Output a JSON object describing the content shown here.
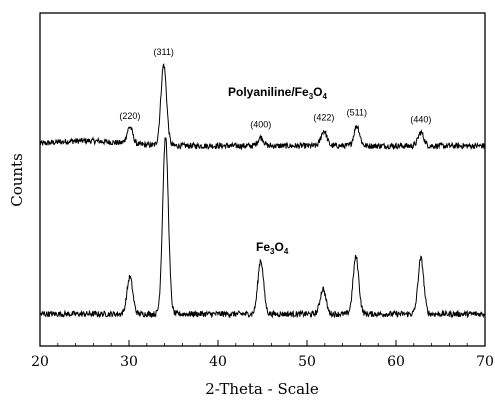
{
  "chart_data": {
    "type": "line",
    "xlabel": "2-Theta - Scale",
    "ylabel": "Counts",
    "xlim": [
      20,
      70
    ],
    "x_ticks": [
      "20",
      "30",
      "40",
      "50",
      "60",
      "70"
    ],
    "y_ticks_labeled": false,
    "grid": false,
    "series": [
      {
        "name": "Polyaniline/Fe3O4",
        "label_main": "Polyaniline/Fe",
        "label_sub1": "3",
        "label_mid": "O",
        "label_sub2": "4",
        "baseline": 1.0,
        "peaks": [
          {
            "hkl": "(220)",
            "x": 30.1,
            "height": 0.1
          },
          {
            "hkl": "(311)",
            "x": 33.9,
            "height": 0.48
          },
          {
            "hkl": "(400)",
            "x": 44.8,
            "height": 0.05
          },
          {
            "hkl": "(422)",
            "x": 51.9,
            "height": 0.09
          },
          {
            "hkl": "(511)",
            "x": 55.6,
            "height": 0.12
          },
          {
            "hkl": "(440)",
            "x": 62.8,
            "height": 0.08
          }
        ]
      },
      {
        "name": "Fe3O4",
        "label_main": "Fe",
        "label_sub1": "3",
        "label_mid": "O",
        "label_sub2": "4",
        "baseline": 0.0,
        "peaks": [
          {
            "x": 30.1,
            "height": 0.22
          },
          {
            "x": 34.1,
            "height": 1.05
          },
          {
            "x": 44.8,
            "height": 0.32
          },
          {
            "x": 51.8,
            "height": 0.15
          },
          {
            "x": 55.5,
            "height": 0.34
          },
          {
            "x": 62.8,
            "height": 0.33
          }
        ]
      }
    ]
  }
}
